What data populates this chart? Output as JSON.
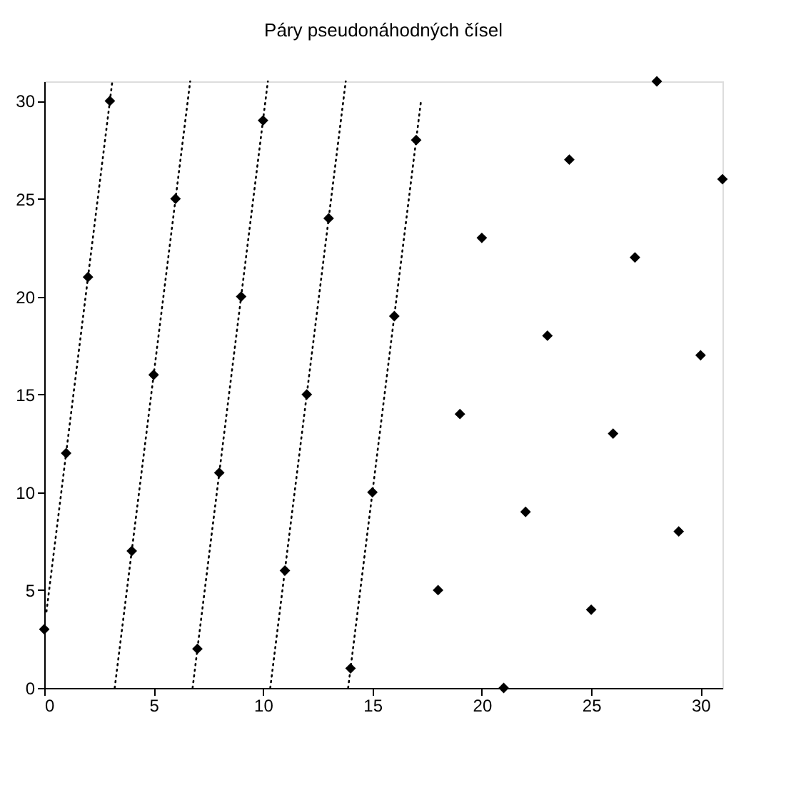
{
  "chart_data": {
    "type": "scatter",
    "title": "Páry pseudonáhodných čísel",
    "xlim": [
      0,
      31
    ],
    "ylim": [
      0,
      31
    ],
    "xticks": [
      0,
      5,
      10,
      15,
      20,
      25,
      30
    ],
    "yticks": [
      0,
      5,
      10,
      15,
      20,
      25,
      30
    ],
    "grid": false,
    "series": [
      {
        "marker": "diamond",
        "color": "#000000",
        "x": [
          0,
          1,
          2,
          3,
          4,
          5,
          6,
          7,
          8,
          9,
          10,
          11,
          12,
          13,
          14,
          15,
          16,
          17,
          18,
          19,
          20,
          21,
          22,
          23,
          24,
          25,
          26,
          27,
          28,
          29,
          30,
          31
        ],
        "values": [
          3,
          12,
          21,
          30,
          7,
          16,
          25,
          2,
          11,
          20,
          29,
          6,
          15,
          24,
          1,
          10,
          19,
          28,
          5,
          14,
          23,
          0,
          9,
          18,
          27,
          4,
          13,
          22,
          31,
          8,
          17,
          26
        ]
      },
      {
        "type": "line",
        "line_style": "dotted",
        "color": "#000000",
        "x": [
          0.1,
          3.1
        ],
        "values": [
          3.9,
          30.9
        ]
      },
      {
        "type": "line",
        "line_style": "dotted",
        "color": "#000000",
        "x": [
          3.22,
          6.67
        ],
        "values": [
          0,
          31
        ]
      },
      {
        "type": "line",
        "line_style": "dotted",
        "color": "#000000",
        "x": [
          6.78,
          10.22
        ],
        "values": [
          0,
          31
        ]
      },
      {
        "type": "line",
        "line_style": "dotted",
        "color": "#000000",
        "x": [
          10.33,
          13.78
        ],
        "values": [
          0,
          31
        ]
      },
      {
        "type": "line",
        "line_style": "dotted",
        "color": "#000000",
        "x": [
          13.89,
          17.22
        ],
        "values": [
          0,
          30
        ]
      }
    ]
  }
}
